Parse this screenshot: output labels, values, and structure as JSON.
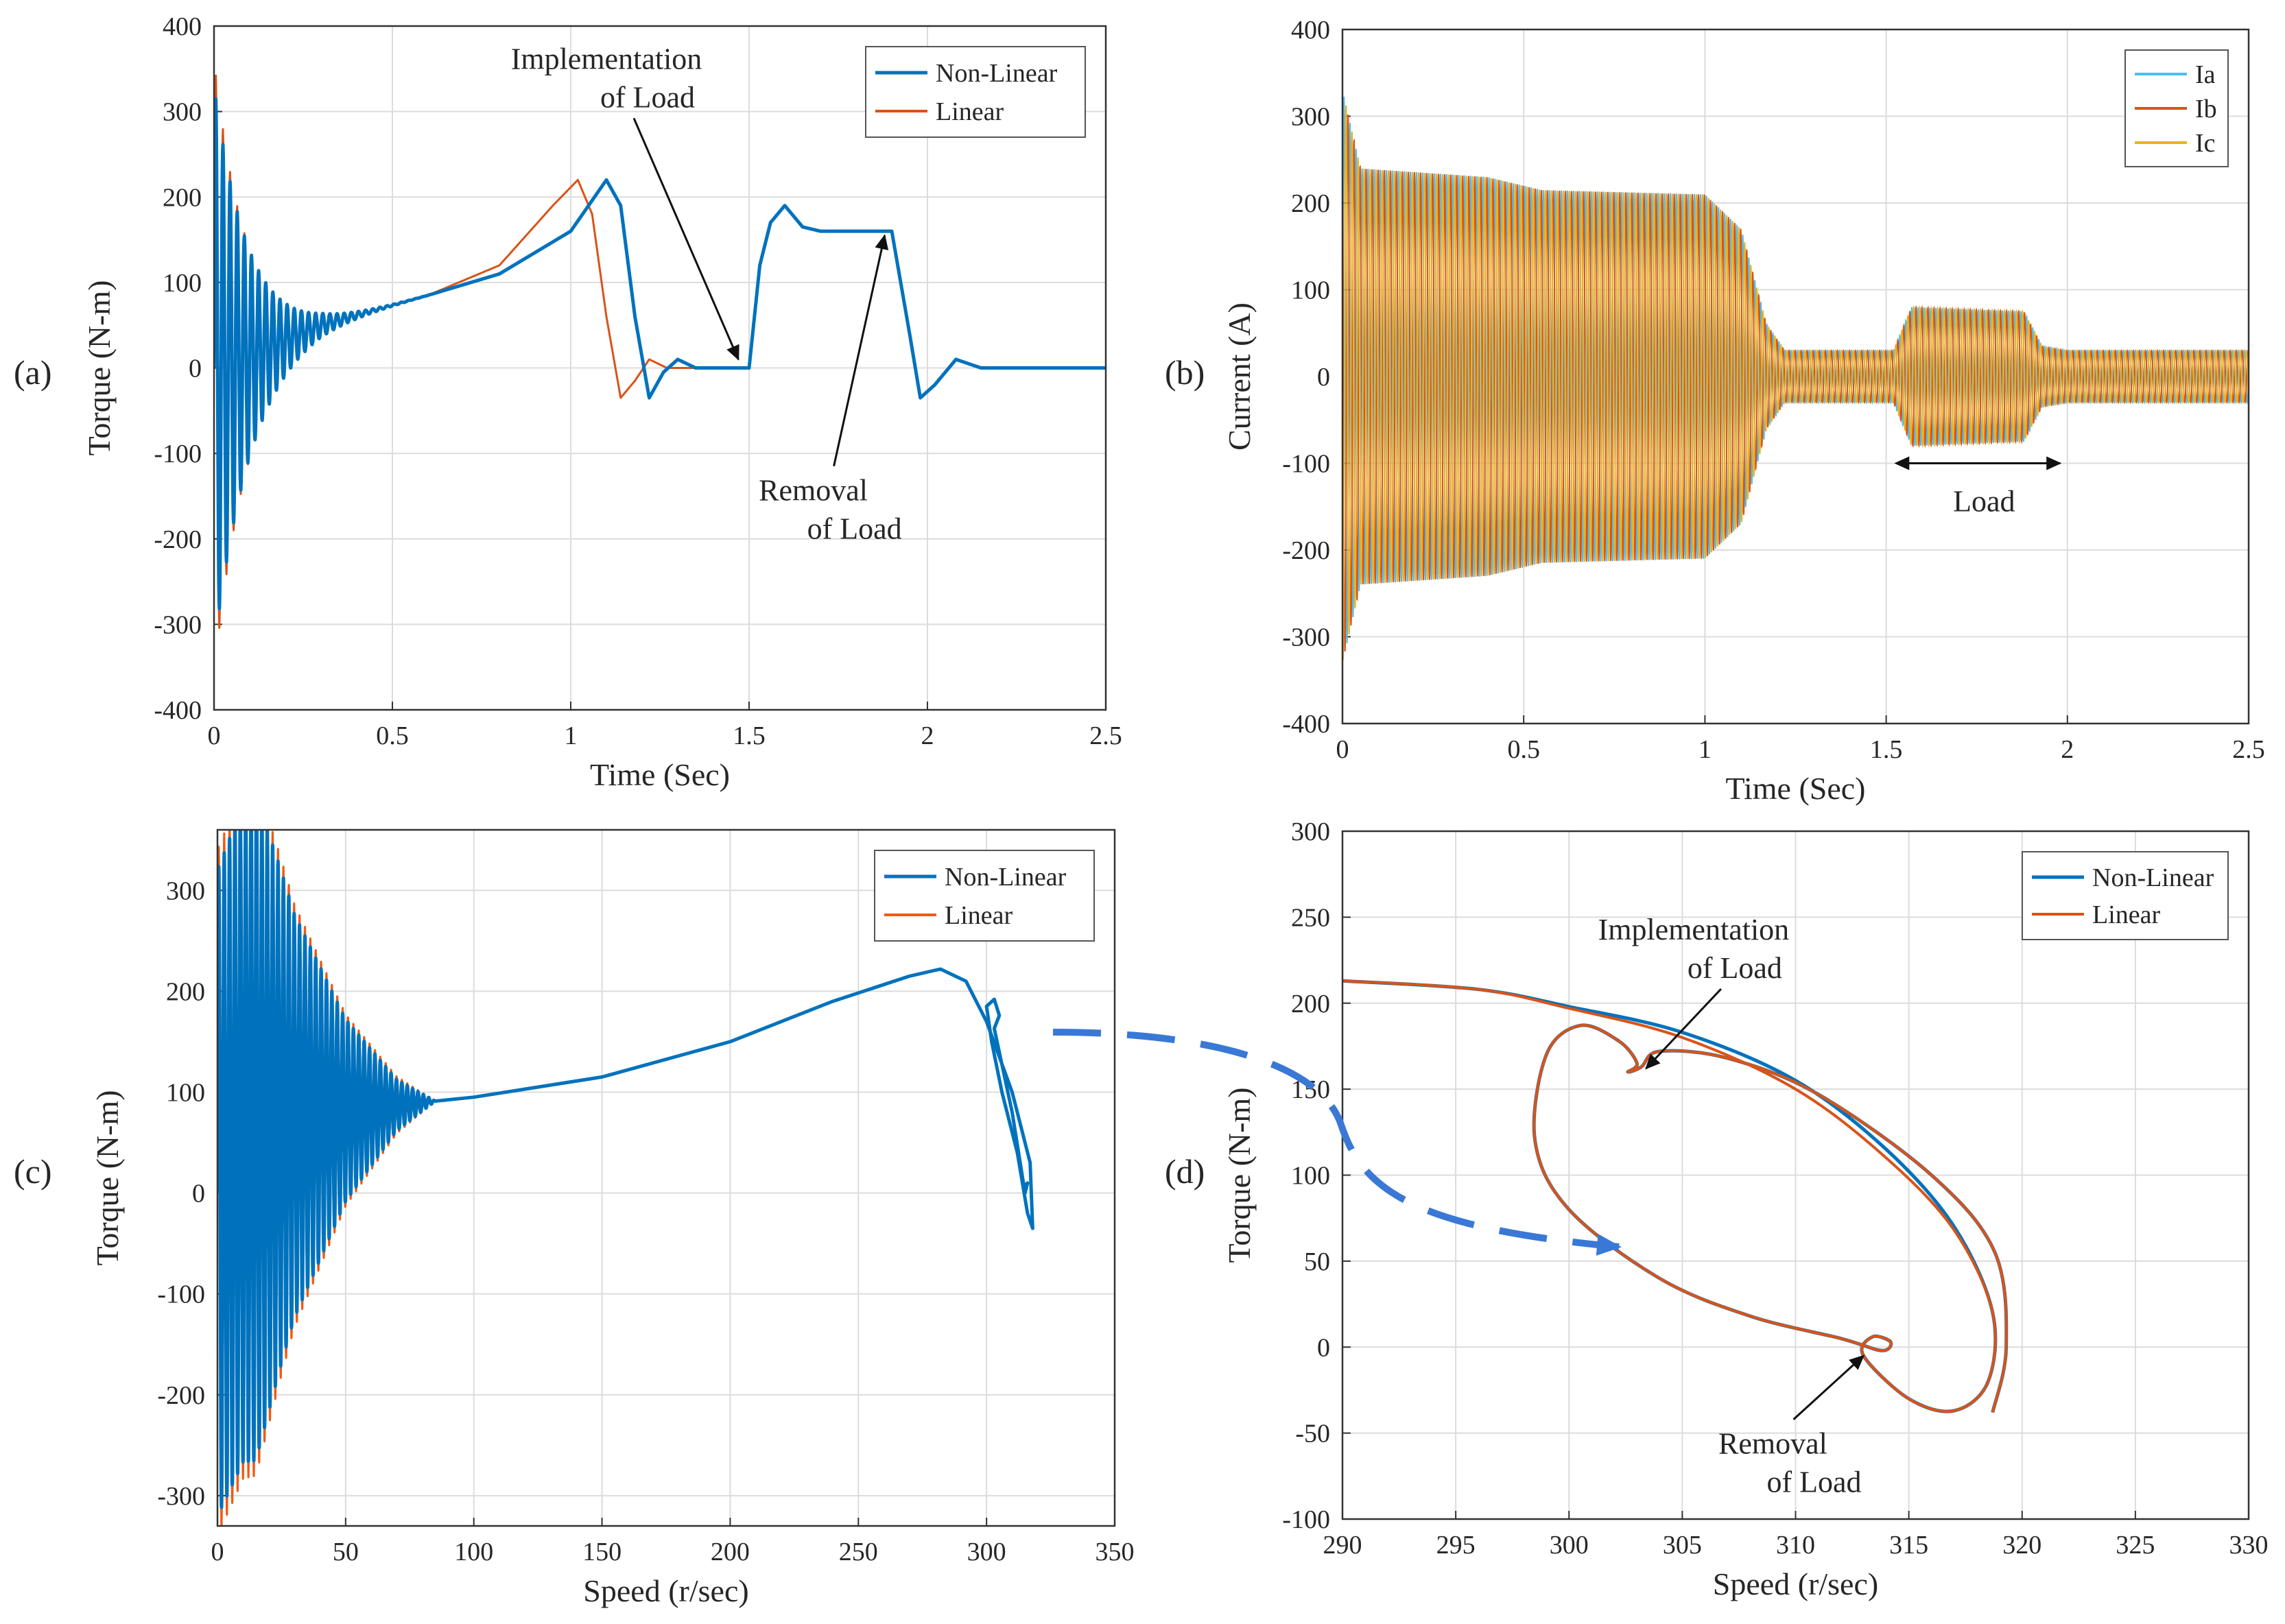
{
  "chart_data": [
    {
      "panel": "(a)",
      "type": "line",
      "xlabel": "Time (Sec)",
      "ylabel": "Torque (N-m)",
      "xlim": [
        0,
        2.5
      ],
      "ylim": [
        -400,
        400
      ],
      "xticks": [
        0,
        0.5,
        1,
        1.5,
        2,
        2.5
      ],
      "xtick_labels": [
        "0",
        "0.5",
        "1",
        "1.5",
        "2",
        "2.5"
      ],
      "yticks": [
        -400,
        -300,
        -200,
        -100,
        0,
        100,
        200,
        300,
        400
      ],
      "ytick_labels": [
        "-400",
        "-300",
        "-200",
        "-100",
        "0",
        "100",
        "200",
        "300",
        "400"
      ],
      "grid": true,
      "legend_position": "top-right",
      "series": [
        {
          "name": "Non-Linear",
          "color": "#0072bd",
          "width": 5,
          "oscillation": {
            "t_start": 0.0,
            "t_end": 0.62,
            "period": 0.02,
            "initial_amplitude": 330,
            "decay": 0.12
          },
          "envelope_center": [
            [
              0,
              0
            ],
            [
              0.3,
              50
            ],
            [
              0.6,
              85
            ],
            [
              0.8,
              110
            ],
            [
              1.0,
              160
            ],
            [
              1.05,
              190
            ],
            [
              1.1,
              220
            ],
            [
              1.14,
              190
            ],
            [
              1.18,
              60
            ],
            [
              1.22,
              -35
            ],
            [
              1.26,
              -5
            ],
            [
              1.3,
              10
            ],
            [
              1.35,
              0
            ],
            [
              1.5,
              0
            ],
            [
              1.53,
              120
            ],
            [
              1.56,
              170
            ],
            [
              1.6,
              190
            ],
            [
              1.65,
              165
            ],
            [
              1.7,
              160
            ],
            [
              1.9,
              160
            ],
            [
              1.95,
              40
            ],
            [
              1.98,
              -35
            ],
            [
              2.02,
              -20
            ],
            [
              2.08,
              10
            ],
            [
              2.15,
              0
            ],
            [
              2.5,
              0
            ]
          ]
        },
        {
          "name": "Linear",
          "color": "#d95319",
          "width": 3,
          "oscillation": {
            "t_start": 0.0,
            "t_end": 0.62,
            "period": 0.02,
            "initial_amplitude": 360,
            "decay": 0.11
          },
          "envelope_center": [
            [
              0,
              0
            ],
            [
              0.3,
              50
            ],
            [
              0.6,
              85
            ],
            [
              0.8,
              120
            ],
            [
              0.95,
              190
            ],
            [
              1.02,
              220
            ],
            [
              1.06,
              180
            ],
            [
              1.1,
              60
            ],
            [
              1.14,
              -35
            ],
            [
              1.18,
              -15
            ],
            [
              1.22,
              10
            ],
            [
              1.27,
              0
            ],
            [
              1.5,
              0
            ],
            [
              1.53,
              120
            ],
            [
              1.56,
              170
            ],
            [
              1.6,
              190
            ],
            [
              1.65,
              165
            ],
            [
              1.7,
              160
            ],
            [
              1.9,
              160
            ],
            [
              1.95,
              40
            ],
            [
              1.98,
              -35
            ],
            [
              2.02,
              -20
            ],
            [
              2.08,
              10
            ],
            [
              2.15,
              0
            ],
            [
              2.5,
              0
            ]
          ]
        }
      ],
      "annotations": [
        {
          "id": "impl",
          "lines": [
            "Implementation",
            "of Load"
          ],
          "anchor": [
            1.1,
            350
          ],
          "target": [
            1.47,
            10
          ]
        },
        {
          "id": "rem",
          "lines": [
            "Removal",
            "of Load"
          ],
          "anchor": [
            1.68,
            -155
          ],
          "target": [
            1.88,
            155
          ]
        }
      ]
    },
    {
      "panel": "(b)",
      "type": "line",
      "xlabel": "Time (Sec)",
      "ylabel": "Current (A)",
      "xlim": [
        0,
        2.5
      ],
      "ylim": [
        -400,
        400
      ],
      "xticks": [
        0,
        0.5,
        1,
        1.5,
        2,
        2.5
      ],
      "xtick_labels": [
        "0",
        "0.5",
        "1",
        "1.5",
        "2",
        "2.5"
      ],
      "yticks": [
        -400,
        -300,
        -200,
        -100,
        0,
        100,
        200,
        300,
        400
      ],
      "ytick_labels": [
        "-400",
        "-300",
        "-200",
        "-100",
        "0",
        "100",
        "200",
        "300",
        "400"
      ],
      "grid": true,
      "legend_position": "top-right",
      "series": [
        {
          "name": "Ia",
          "color": "#4dbeee",
          "width": 2,
          "phase": 0
        },
        {
          "name": "Ib",
          "color": "#d95319",
          "width": 2,
          "phase": 2.094
        },
        {
          "name": "Ic",
          "color": "#edb120",
          "width": 2,
          "phase": 4.189
        }
      ],
      "amplitude_profile": [
        [
          0,
          330
        ],
        [
          0.05,
          240
        ],
        [
          0.4,
          230
        ],
        [
          0.55,
          215
        ],
        [
          1.0,
          210
        ],
        [
          1.1,
          170
        ],
        [
          1.17,
          60
        ],
        [
          1.22,
          30
        ],
        [
          1.52,
          30
        ],
        [
          1.57,
          80
        ],
        [
          1.88,
          75
        ],
        [
          1.93,
          35
        ],
        [
          2.0,
          30
        ],
        [
          2.5,
          30
        ]
      ],
      "frequency_hz": 60,
      "annotations": [
        {
          "id": "load",
          "text": "Load",
          "x_from": 1.56,
          "x_to": 1.98,
          "y": -100
        }
      ]
    },
    {
      "panel": "(c)",
      "type": "line",
      "xlabel": "Speed (r/sec)",
      "ylabel": "Torque (N-m)",
      "xlim": [
        0,
        350
      ],
      "ylim": [
        -330,
        360
      ],
      "xticks": [
        0,
        50,
        100,
        150,
        200,
        250,
        300,
        350
      ],
      "xtick_labels": [
        "0",
        "50",
        "100",
        "150",
        "200",
        "250",
        "300",
        "350"
      ],
      "yticks": [
        -300,
        -200,
        -100,
        0,
        100,
        200,
        300
      ],
      "ytick_labels": [
        "-300",
        "-200",
        "-100",
        "0",
        "100",
        "200",
        "300"
      ],
      "grid": true,
      "legend_position": "top-right",
      "series": [
        {
          "name": "Non-Linear",
          "color": "#0072bd",
          "width": 5,
          "center_curve": [
            [
              0,
              0
            ],
            [
              10,
              60
            ],
            [
              25,
              75
            ],
            [
              50,
              82
            ],
            [
              100,
              95
            ],
            [
              150,
              115
            ],
            [
              200,
              150
            ],
            [
              240,
              190
            ],
            [
              270,
              215
            ],
            [
              282,
              222
            ],
            [
              292,
              210
            ],
            [
              300,
              170
            ],
            [
              310,
              100
            ],
            [
              317,
              30
            ],
            [
              318,
              -35
            ],
            [
              316,
              -20
            ],
            [
              312,
              40
            ],
            [
              306,
              100
            ],
            [
              302,
              150
            ],
            [
              300,
              185
            ],
            [
              303,
              192
            ],
            [
              305,
              176
            ],
            [
              303,
              163
            ],
            [
              310,
              80
            ],
            [
              315,
              0
            ],
            [
              316,
              10
            ],
            [
              314,
              5
            ]
          ],
          "oscillation_amplitude": [
            [
              0,
              320
            ],
            [
              15,
              330
            ],
            [
              30,
              200
            ],
            [
              50,
              90
            ],
            [
              70,
              25
            ],
            [
              85,
              0
            ],
            [
              350,
              0
            ]
          ]
        },
        {
          "name": "Linear",
          "color": "#f05a12",
          "width": 3,
          "center_curve": [
            [
              0,
              0
            ],
            [
              10,
              60
            ],
            [
              25,
              75
            ],
            [
              50,
              82
            ],
            [
              100,
              95
            ],
            [
              150,
              115
            ],
            [
              200,
              150
            ],
            [
              240,
              190
            ],
            [
              270,
              215
            ],
            [
              282,
              222
            ],
            [
              292,
              210
            ],
            [
              300,
              170
            ],
            [
              310,
              100
            ],
            [
              317,
              30
            ],
            [
              318,
              -35
            ],
            [
              316,
              -20
            ],
            [
              312,
              40
            ],
            [
              306,
              100
            ],
            [
              302,
              150
            ],
            [
              300,
              185
            ],
            [
              303,
              192
            ],
            [
              305,
              176
            ],
            [
              303,
              163
            ],
            [
              310,
              80
            ],
            [
              315,
              0
            ],
            [
              316,
              10
            ],
            [
              314,
              5
            ]
          ],
          "oscillation_amplitude": [
            [
              0,
              340
            ],
            [
              15,
              345
            ],
            [
              30,
              210
            ],
            [
              50,
              95
            ],
            [
              70,
              28
            ],
            [
              85,
              0
            ],
            [
              350,
              0
            ]
          ]
        }
      ]
    },
    {
      "panel": "(d)",
      "type": "line",
      "xlabel": "Speed (r/sec)",
      "ylabel": "Torque (N-m)",
      "xlim": [
        290,
        330
      ],
      "ylim": [
        -100,
        300
      ],
      "xticks": [
        290,
        295,
        300,
        305,
        310,
        315,
        320,
        325,
        330
      ],
      "xtick_labels": [
        "290",
        "295",
        "300",
        "305",
        "310",
        "315",
        "320",
        "325",
        "330"
      ],
      "yticks": [
        -100,
        -50,
        0,
        50,
        100,
        150,
        200,
        250,
        300
      ],
      "ytick_labels": [
        "-100",
        "-50",
        "0",
        "50",
        "100",
        "150",
        "200",
        "250",
        "300"
      ],
      "grid": true,
      "legend_position": "top-right",
      "series": [
        {
          "name": "Non-Linear",
          "color": "#0072bd",
          "width": 5,
          "points": [
            [
              290,
              213
            ],
            [
              296,
              208
            ],
            [
              300,
              198
            ],
            [
              305,
              183
            ],
            [
              310,
              155
            ],
            [
              314,
              115
            ],
            [
              317,
              70
            ],
            [
              318.7,
              20
            ],
            [
              318.5,
              -20
            ],
            [
              317,
              -37
            ],
            [
              315,
              -30
            ],
            [
              313,
              -5
            ],
            [
              313.4,
              6
            ],
            [
              314.2,
              3
            ],
            [
              313.8,
              -2
            ],
            [
              312,
              5
            ],
            [
              308,
              18
            ],
            [
              304,
              40
            ],
            [
              300,
              80
            ],
            [
              298.5,
              120
            ],
            [
              299,
              170
            ],
            [
              300.5,
              187
            ],
            [
              302.2,
              178
            ],
            [
              303,
              165
            ],
            [
              302.6,
              160
            ],
            [
              303.2,
              163
            ],
            [
              304,
              172
            ],
            [
              307,
              168
            ],
            [
              311,
              147
            ],
            [
              316,
              100
            ],
            [
              318.8,
              55
            ],
            [
              319.3,
              0
            ],
            [
              318.7,
              -38
            ]
          ]
        },
        {
          "name": "Linear",
          "color": "#d95319",
          "width": 4,
          "points": [
            [
              290,
              213
            ],
            [
              296,
              208
            ],
            [
              300,
              197
            ],
            [
              305,
              180
            ],
            [
              310,
              150
            ],
            [
              314,
              110
            ],
            [
              317,
              68
            ],
            [
              318.7,
              20
            ],
            [
              318.5,
              -20
            ],
            [
              317,
              -37
            ],
            [
              315,
              -30
            ],
            [
              313,
              -5
            ],
            [
              313.4,
              6
            ],
            [
              314.2,
              3
            ],
            [
              313.8,
              -2
            ],
            [
              312,
              5
            ],
            [
              308,
              18
            ],
            [
              304,
              40
            ],
            [
              300,
              80
            ],
            [
              298.5,
              120
            ],
            [
              299,
              170
            ],
            [
              300.5,
              187
            ],
            [
              302.2,
              178
            ],
            [
              303,
              165
            ],
            [
              302.6,
              160
            ],
            [
              303.2,
              163
            ],
            [
              304,
              172
            ],
            [
              307,
              168
            ],
            [
              311,
              147
            ],
            [
              316,
              100
            ],
            [
              318.8,
              55
            ],
            [
              319.3,
              0
            ],
            [
              318.7,
              -38
            ]
          ]
        }
      ],
      "annotations": [
        {
          "id": "impl",
          "lines": [
            "Implementation",
            "of Load"
          ],
          "anchor": [
            305.5,
            237
          ],
          "target": [
            303.4,
            162
          ]
        },
        {
          "id": "rem",
          "lines": [
            "Removal",
            "of Load"
          ],
          "anchor": [
            309,
            -62
          ],
          "target": [
            313,
            -5
          ]
        }
      ]
    }
  ],
  "panel_labels": [
    "(a)",
    "(b)",
    "(c)",
    "(d)"
  ],
  "connector_color": "#3a78d6"
}
